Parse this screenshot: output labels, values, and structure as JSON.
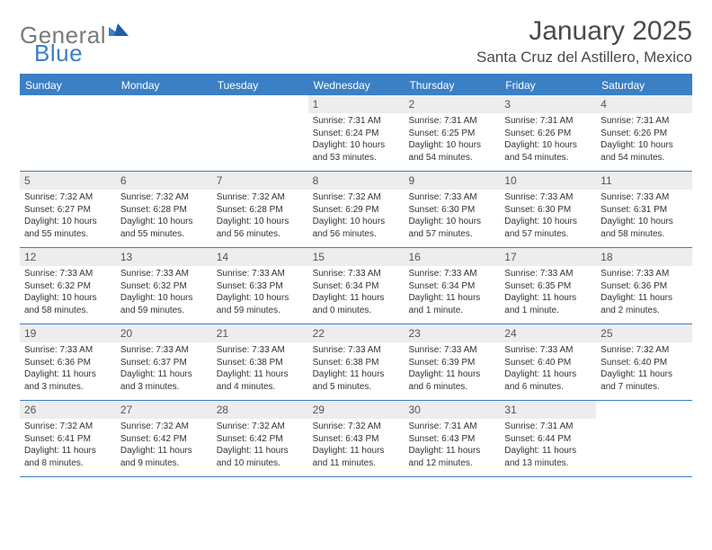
{
  "brand": {
    "general": "General",
    "blue": "Blue"
  },
  "title": "January 2025",
  "location": "Santa Cruz del Astillero, Mexico",
  "colors": {
    "accent": "#3b7fc4",
    "text": "#4a4a4a",
    "cellbg": "#ededed"
  },
  "weekdays": [
    "Sunday",
    "Monday",
    "Tuesday",
    "Wednesday",
    "Thursday",
    "Friday",
    "Saturday"
  ],
  "weeks": [
    [
      {
        "n": "",
        "sunrise": "",
        "sunset": "",
        "daylight": ""
      },
      {
        "n": "",
        "sunrise": "",
        "sunset": "",
        "daylight": ""
      },
      {
        "n": "",
        "sunrise": "",
        "sunset": "",
        "daylight": ""
      },
      {
        "n": "1",
        "sunrise": "Sunrise: 7:31 AM",
        "sunset": "Sunset: 6:24 PM",
        "daylight": "Daylight: 10 hours and 53 minutes."
      },
      {
        "n": "2",
        "sunrise": "Sunrise: 7:31 AM",
        "sunset": "Sunset: 6:25 PM",
        "daylight": "Daylight: 10 hours and 54 minutes."
      },
      {
        "n": "3",
        "sunrise": "Sunrise: 7:31 AM",
        "sunset": "Sunset: 6:26 PM",
        "daylight": "Daylight: 10 hours and 54 minutes."
      },
      {
        "n": "4",
        "sunrise": "Sunrise: 7:31 AM",
        "sunset": "Sunset: 6:26 PM",
        "daylight": "Daylight: 10 hours and 54 minutes."
      }
    ],
    [
      {
        "n": "5",
        "sunrise": "Sunrise: 7:32 AM",
        "sunset": "Sunset: 6:27 PM",
        "daylight": "Daylight: 10 hours and 55 minutes."
      },
      {
        "n": "6",
        "sunrise": "Sunrise: 7:32 AM",
        "sunset": "Sunset: 6:28 PM",
        "daylight": "Daylight: 10 hours and 55 minutes."
      },
      {
        "n": "7",
        "sunrise": "Sunrise: 7:32 AM",
        "sunset": "Sunset: 6:28 PM",
        "daylight": "Daylight: 10 hours and 56 minutes."
      },
      {
        "n": "8",
        "sunrise": "Sunrise: 7:32 AM",
        "sunset": "Sunset: 6:29 PM",
        "daylight": "Daylight: 10 hours and 56 minutes."
      },
      {
        "n": "9",
        "sunrise": "Sunrise: 7:33 AM",
        "sunset": "Sunset: 6:30 PM",
        "daylight": "Daylight: 10 hours and 57 minutes."
      },
      {
        "n": "10",
        "sunrise": "Sunrise: 7:33 AM",
        "sunset": "Sunset: 6:30 PM",
        "daylight": "Daylight: 10 hours and 57 minutes."
      },
      {
        "n": "11",
        "sunrise": "Sunrise: 7:33 AM",
        "sunset": "Sunset: 6:31 PM",
        "daylight": "Daylight: 10 hours and 58 minutes."
      }
    ],
    [
      {
        "n": "12",
        "sunrise": "Sunrise: 7:33 AM",
        "sunset": "Sunset: 6:32 PM",
        "daylight": "Daylight: 10 hours and 58 minutes."
      },
      {
        "n": "13",
        "sunrise": "Sunrise: 7:33 AM",
        "sunset": "Sunset: 6:32 PM",
        "daylight": "Daylight: 10 hours and 59 minutes."
      },
      {
        "n": "14",
        "sunrise": "Sunrise: 7:33 AM",
        "sunset": "Sunset: 6:33 PM",
        "daylight": "Daylight: 10 hours and 59 minutes."
      },
      {
        "n": "15",
        "sunrise": "Sunrise: 7:33 AM",
        "sunset": "Sunset: 6:34 PM",
        "daylight": "Daylight: 11 hours and 0 minutes."
      },
      {
        "n": "16",
        "sunrise": "Sunrise: 7:33 AM",
        "sunset": "Sunset: 6:34 PM",
        "daylight": "Daylight: 11 hours and 1 minute."
      },
      {
        "n": "17",
        "sunrise": "Sunrise: 7:33 AM",
        "sunset": "Sunset: 6:35 PM",
        "daylight": "Daylight: 11 hours and 1 minute."
      },
      {
        "n": "18",
        "sunrise": "Sunrise: 7:33 AM",
        "sunset": "Sunset: 6:36 PM",
        "daylight": "Daylight: 11 hours and 2 minutes."
      }
    ],
    [
      {
        "n": "19",
        "sunrise": "Sunrise: 7:33 AM",
        "sunset": "Sunset: 6:36 PM",
        "daylight": "Daylight: 11 hours and 3 minutes."
      },
      {
        "n": "20",
        "sunrise": "Sunrise: 7:33 AM",
        "sunset": "Sunset: 6:37 PM",
        "daylight": "Daylight: 11 hours and 3 minutes."
      },
      {
        "n": "21",
        "sunrise": "Sunrise: 7:33 AM",
        "sunset": "Sunset: 6:38 PM",
        "daylight": "Daylight: 11 hours and 4 minutes."
      },
      {
        "n": "22",
        "sunrise": "Sunrise: 7:33 AM",
        "sunset": "Sunset: 6:38 PM",
        "daylight": "Daylight: 11 hours and 5 minutes."
      },
      {
        "n": "23",
        "sunrise": "Sunrise: 7:33 AM",
        "sunset": "Sunset: 6:39 PM",
        "daylight": "Daylight: 11 hours and 6 minutes."
      },
      {
        "n": "24",
        "sunrise": "Sunrise: 7:33 AM",
        "sunset": "Sunset: 6:40 PM",
        "daylight": "Daylight: 11 hours and 6 minutes."
      },
      {
        "n": "25",
        "sunrise": "Sunrise: 7:32 AM",
        "sunset": "Sunset: 6:40 PM",
        "daylight": "Daylight: 11 hours and 7 minutes."
      }
    ],
    [
      {
        "n": "26",
        "sunrise": "Sunrise: 7:32 AM",
        "sunset": "Sunset: 6:41 PM",
        "daylight": "Daylight: 11 hours and 8 minutes."
      },
      {
        "n": "27",
        "sunrise": "Sunrise: 7:32 AM",
        "sunset": "Sunset: 6:42 PM",
        "daylight": "Daylight: 11 hours and 9 minutes."
      },
      {
        "n": "28",
        "sunrise": "Sunrise: 7:32 AM",
        "sunset": "Sunset: 6:42 PM",
        "daylight": "Daylight: 11 hours and 10 minutes."
      },
      {
        "n": "29",
        "sunrise": "Sunrise: 7:32 AM",
        "sunset": "Sunset: 6:43 PM",
        "daylight": "Daylight: 11 hours and 11 minutes."
      },
      {
        "n": "30",
        "sunrise": "Sunrise: 7:31 AM",
        "sunset": "Sunset: 6:43 PM",
        "daylight": "Daylight: 11 hours and 12 minutes."
      },
      {
        "n": "31",
        "sunrise": "Sunrise: 7:31 AM",
        "sunset": "Sunset: 6:44 PM",
        "daylight": "Daylight: 11 hours and 13 minutes."
      },
      {
        "n": "",
        "sunrise": "",
        "sunset": "",
        "daylight": ""
      }
    ]
  ]
}
